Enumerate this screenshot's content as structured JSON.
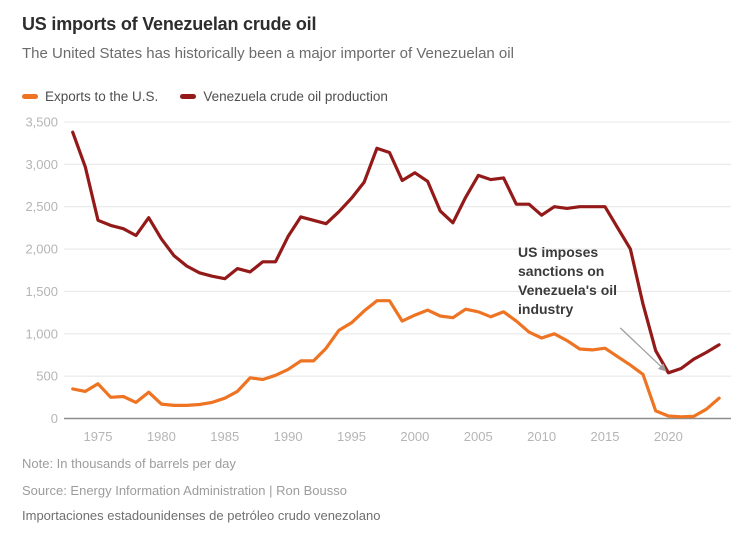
{
  "header": {
    "title": "US imports of Venezuelan crude oil",
    "subtitle": "The United States has historically been a major importer of Venezuelan oil"
  },
  "legend": {
    "exports_label": "Exports to the U.S.",
    "production_label": "Venezuela crude oil production"
  },
  "annotation": {
    "text": "US imposes\nsanctions on\nVenezuela's oil\nindustry"
  },
  "footer": {
    "note": "Note: In thousands of barrels per day",
    "source": "Source: Energy Information Administration | Ron Bousso",
    "translation": "Importaciones estadounidenses de petróleo crudo venezolano"
  },
  "colors": {
    "exports": "#ee7423",
    "production": "#941a1a",
    "gridline": "#e8e8e8",
    "zero_line": "#8c8c8c",
    "tick_text": "#b5b5b5",
    "arrow": "#a0a0a0"
  },
  "chart_data": {
    "type": "line",
    "title": "US imports of Venezuelan crude oil",
    "xlabel": "",
    "ylabel": "In thousands of barrels per day",
    "ylim": [
      0,
      3500
    ],
    "ytick_step": 500,
    "ytick_labels": [
      "0",
      "500",
      "1,000",
      "1,500",
      "2,000",
      "2,500",
      "3,000",
      "3,500"
    ],
    "xticks": [
      1975,
      1980,
      1985,
      1990,
      1995,
      2000,
      2005,
      2010,
      2015,
      2020
    ],
    "grid": true,
    "legend_position": "top",
    "x": [
      1973,
      1974,
      1975,
      1976,
      1977,
      1978,
      1979,
      1980,
      1981,
      1982,
      1983,
      1984,
      1985,
      1986,
      1987,
      1988,
      1989,
      1990,
      1991,
      1992,
      1993,
      1994,
      1995,
      1996,
      1997,
      1998,
      1999,
      2000,
      2001,
      2002,
      2003,
      2004,
      2005,
      2006,
      2007,
      2008,
      2009,
      2010,
      2011,
      2012,
      2013,
      2014,
      2015,
      2016,
      2017,
      2018,
      2019,
      2020,
      2021,
      2022,
      2023,
      2024
    ],
    "series": [
      {
        "name": "Exports to the U.S.",
        "color": "#ee7423",
        "values": [
          350,
          320,
          410,
          250,
          260,
          190,
          310,
          170,
          155,
          155,
          165,
          190,
          240,
          320,
          480,
          460,
          510,
          580,
          680,
          680,
          830,
          1040,
          1130,
          1270,
          1390,
          1390,
          1150,
          1220,
          1280,
          1210,
          1190,
          1290,
          1260,
          1200,
          1260,
          1150,
          1020,
          950,
          1000,
          920,
          820,
          810,
          830,
          730,
          630,
          520,
          90,
          30,
          20,
          25,
          110,
          240
        ]
      },
      {
        "name": "Venezuela crude oil production",
        "color": "#941a1a",
        "values": [
          3380,
          2970,
          2340,
          2280,
          2240,
          2160,
          2370,
          2120,
          1920,
          1800,
          1720,
          1680,
          1650,
          1770,
          1730,
          1850,
          1850,
          2150,
          2380,
          2340,
          2300,
          2440,
          2600,
          2790,
          3190,
          3140,
          2810,
          2900,
          2800,
          2450,
          2310,
          2610,
          2870,
          2820,
          2840,
          2530,
          2530,
          2400,
          2500,
          2480,
          2500,
          2500,
          2500,
          2250,
          2000,
          1350,
          800,
          540,
          590,
          700,
          780,
          870
        ]
      }
    ],
    "annotation": {
      "text": "US imposes sanctions on Venezuela's oil industry",
      "arrow_from_year_value": [
        2016.2,
        1070
      ],
      "arrow_to_year_value": [
        2019.8,
        560
      ]
    }
  }
}
